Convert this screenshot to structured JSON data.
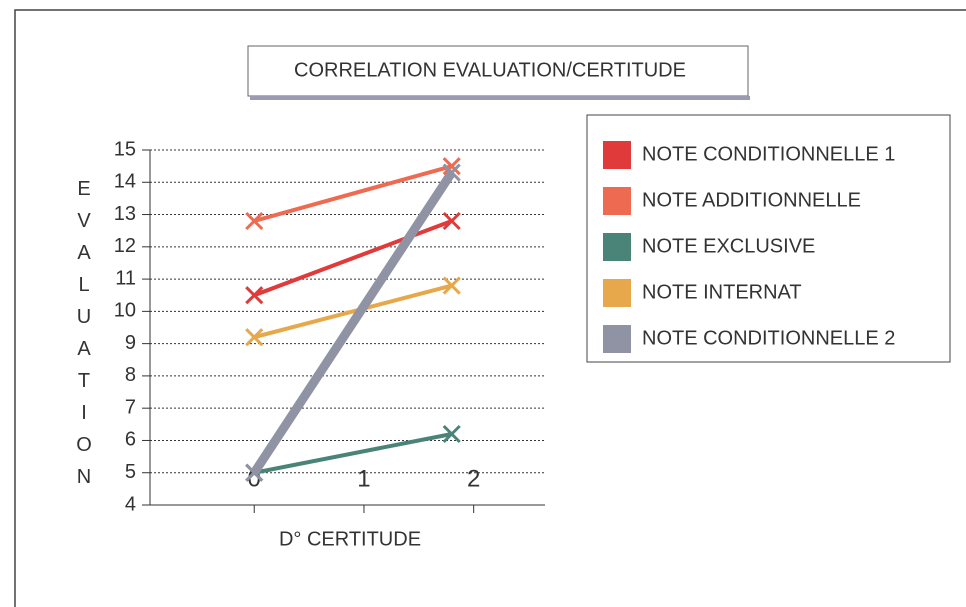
{
  "chart_data": {
    "type": "line",
    "title": "CORRELATION EVALUATION/CERTITUDE",
    "x_label": "D° CERTITUDE",
    "y_label": "EVALUATION",
    "x": [
      0,
      1.8
    ],
    "xlim": [
      -0.95,
      2.65
    ],
    "xticks": [
      0,
      1,
      2
    ],
    "ylim": [
      4,
      15
    ],
    "yticks": [
      4,
      5,
      6,
      7,
      8,
      9,
      10,
      11,
      12,
      13,
      14,
      15
    ],
    "grid": true,
    "legend": "right",
    "series": [
      {
        "name": "NOTE CONDITIONNELLE 1",
        "color": "#e03a3a",
        "values": [
          10.5,
          12.8
        ]
      },
      {
        "name": "NOTE ADDITIONNELLE",
        "color": "#ee6a50",
        "values": [
          12.8,
          14.5
        ]
      },
      {
        "name": "NOTE EXCLUSIVE",
        "color": "#4a8478",
        "values": [
          5,
          6.2
        ]
      },
      {
        "name": "NOTE INTERNAT",
        "color": "#e6a84a",
        "values": [
          9.2,
          10.8
        ]
      },
      {
        "name": "NOTE CONDITIONNELLE 2",
        "color": "#8f93a3",
        "values": [
          5,
          14.3
        ]
      }
    ]
  }
}
